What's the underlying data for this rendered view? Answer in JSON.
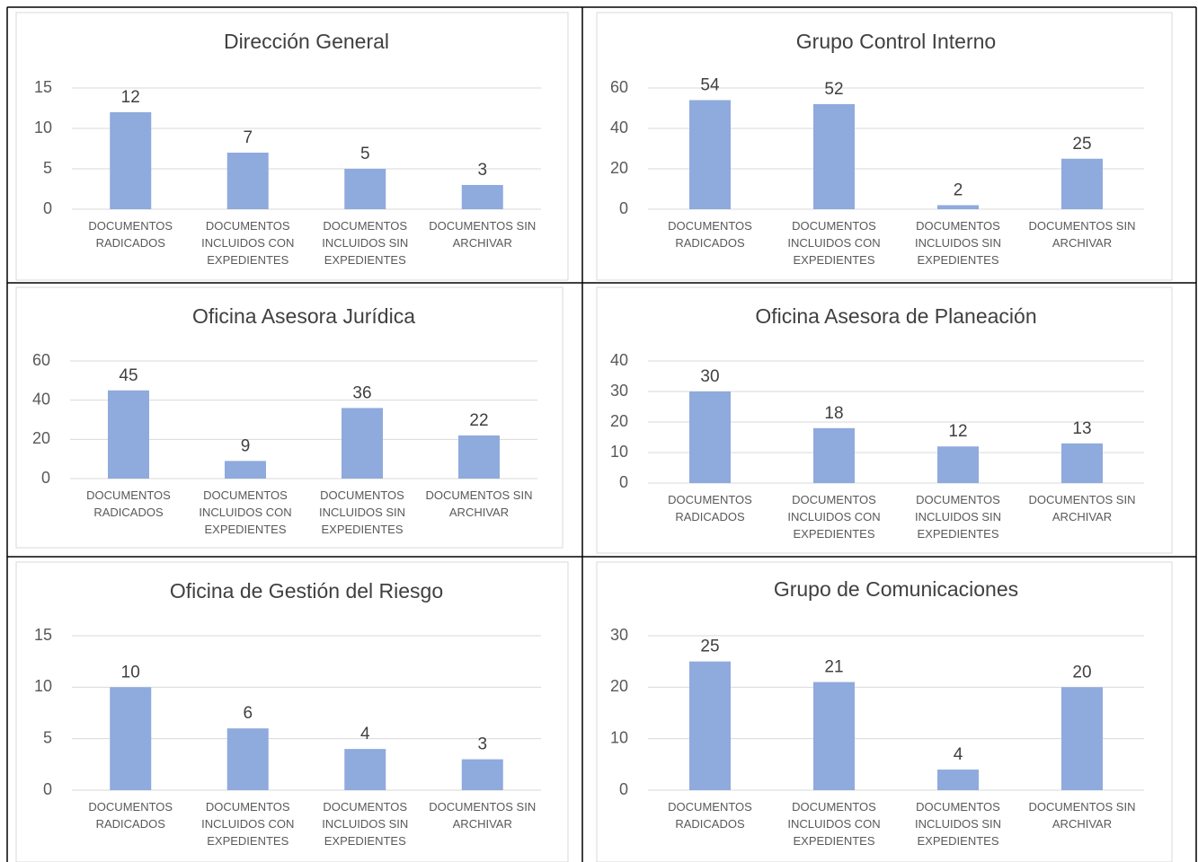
{
  "chart_data": [
    {
      "type": "bar",
      "title": "Dirección General",
      "categories": [
        "DOCUMENTOS RADICADOS",
        "DOCUMENTOS INCLUIDOS CON EXPEDIENTES",
        "DOCUMENTOS INCLUIDOS SIN EXPEDIENTES",
        "DOCUMENTOS SIN ARCHIVAR"
      ],
      "values": [
        12,
        7,
        5,
        3
      ],
      "color": "#8faadc",
      "ylim": [
        0,
        15
      ],
      "yticks": [
        0,
        5,
        10,
        15
      ],
      "grid": true
    },
    {
      "type": "bar",
      "title": "Grupo Control Interno",
      "categories": [
        "DOCUMENTOS RADICADOS",
        "DOCUMENTOS INCLUIDOS CON EXPEDIENTES",
        "DOCUMENTOS INCLUIDOS SIN EXPEDIENTES",
        "DOCUMENTOS SIN ARCHIVAR"
      ],
      "values": [
        54,
        52,
        2,
        25
      ],
      "color": "#8faadc",
      "ylim": [
        0,
        60
      ],
      "yticks": [
        0,
        20,
        40,
        60
      ],
      "grid": true
    },
    {
      "type": "bar",
      "title": "Oficina Asesora Jurídica",
      "categories": [
        "DOCUMENTOS RADICADOS",
        "DOCUMENTOS INCLUIDOS CON EXPEDIENTES",
        "DOCUMENTOS INCLUIDOS SIN EXPEDIENTES",
        "DOCUMENTOS SIN ARCHIVAR"
      ],
      "values": [
        45,
        9,
        36,
        22
      ],
      "color": "#8faadc",
      "ylim": [
        0,
        60
      ],
      "yticks": [
        0,
        20,
        40,
        60
      ],
      "grid": true
    },
    {
      "type": "bar",
      "title": "Oficina Asesora de Planeación",
      "categories": [
        "DOCUMENTOS RADICADOS",
        "DOCUMENTOS INCLUIDOS CON EXPEDIENTES",
        "DOCUMENTOS INCLUIDOS SIN EXPEDIENTES",
        "DOCUMENTOS SIN ARCHIVAR"
      ],
      "values": [
        30,
        18,
        12,
        13
      ],
      "color": "#8faadc",
      "ylim": [
        0,
        40
      ],
      "yticks": [
        0,
        10,
        20,
        30,
        40
      ],
      "grid": true
    },
    {
      "type": "bar",
      "title": "Oficina de Gestión del Riesgo",
      "categories": [
        "DOCUMENTOS RADICADOS",
        "DOCUMENTOS INCLUIDOS CON EXPEDIENTES",
        "DOCUMENTOS INCLUIDOS SIN EXPEDIENTES",
        "DOCUMENTOS SIN ARCHIVAR"
      ],
      "values": [
        10,
        6,
        4,
        3
      ],
      "color": "#8faadc",
      "ylim": [
        0,
        15
      ],
      "yticks": [
        0,
        5,
        10,
        15
      ],
      "grid": true
    },
    {
      "type": "bar",
      "title": "Grupo de Comunicaciones",
      "categories": [
        "DOCUMENTOS RADICADOS",
        "DOCUMENTOS INCLUIDOS CON EXPEDIENTES",
        "DOCUMENTOS INCLUIDOS SIN EXPEDIENTES",
        "DOCUMENTOS SIN ARCHIVAR"
      ],
      "values": [
        25,
        21,
        4,
        20
      ],
      "color": "#8faadc",
      "ylim": [
        0,
        30
      ],
      "yticks": [
        0,
        10,
        20,
        30
      ],
      "grid": true
    }
  ]
}
